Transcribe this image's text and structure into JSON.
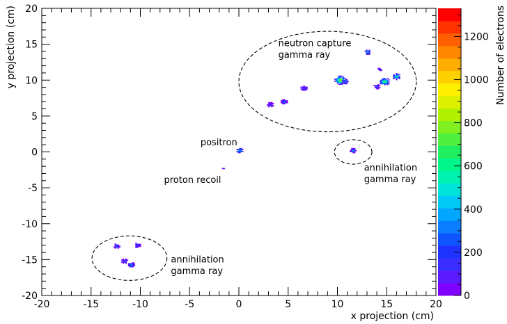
{
  "chart_data": {
    "type": "heatmap",
    "xlabel": "x projection (cm)",
    "ylabel": "y projection (cm)",
    "xlim": [
      -20,
      20
    ],
    "ylim": [
      -20,
      20
    ],
    "x_ticks": [
      -20,
      -15,
      -10,
      -5,
      0,
      5,
      10,
      15,
      20
    ],
    "y_ticks": [
      -20,
      -15,
      -10,
      -5,
      0,
      5,
      10,
      15,
      20
    ],
    "grid": false,
    "colorbar": {
      "label": "Number of electrons",
      "range": [
        0,
        1330
      ],
      "ticks": [
        0,
        200,
        400,
        600,
        800,
        1000,
        1200
      ],
      "colors": [
        "#7f00ff",
        "#5a1cff",
        "#3a2dff",
        "#1f33ff",
        "#0f55ff",
        "#0b7dff",
        "#00a6ff",
        "#00c9f5",
        "#00e3d8",
        "#00f2b0",
        "#00f58a",
        "#20f060",
        "#4ff040",
        "#80f020",
        "#b0f000",
        "#ddf000",
        "#fff000",
        "#ffd000",
        "#ffad00",
        "#ff8800",
        "#ff5f00",
        "#ff3300",
        "#ff0000"
      ]
    },
    "clusters": [
      {
        "x": 0.1,
        "y": 0.2,
        "r": 0.35,
        "peak": 420
      },
      {
        "x": -1.5,
        "y": -2.3,
        "r": 0.15,
        "peak": 120
      },
      {
        "x": 11.6,
        "y": 0.2,
        "r": 0.3,
        "peak": 380
      },
      {
        "x": 3.2,
        "y": 6.6,
        "r": 0.3,
        "peak": 160
      },
      {
        "x": 4.6,
        "y": 7.0,
        "r": 0.3,
        "peak": 300
      },
      {
        "x": 6.6,
        "y": 8.9,
        "r": 0.3,
        "peak": 260
      },
      {
        "x": 10.3,
        "y": 10.0,
        "r": 0.55,
        "peak": 900
      },
      {
        "x": 10.8,
        "y": 9.8,
        "r": 0.3,
        "peak": 380
      },
      {
        "x": 14.0,
        "y": 9.1,
        "r": 0.3,
        "peak": 200
      },
      {
        "x": 14.8,
        "y": 9.8,
        "r": 0.5,
        "peak": 700
      },
      {
        "x": 14.3,
        "y": 11.5,
        "r": 0.25,
        "peak": 180
      },
      {
        "x": 16.0,
        "y": 10.5,
        "r": 0.4,
        "peak": 600
      },
      {
        "x": 13.1,
        "y": 13.9,
        "r": 0.35,
        "peak": 380
      },
      {
        "x": -12.4,
        "y": -13.1,
        "r": 0.3,
        "peak": 260
      },
      {
        "x": -10.3,
        "y": -13.0,
        "r": 0.3,
        "peak": 220
      },
      {
        "x": -11.6,
        "y": -15.2,
        "r": 0.3,
        "peak": 220
      },
      {
        "x": -10.9,
        "y": -15.7,
        "r": 0.35,
        "peak": 320
      }
    ],
    "ellipses": [
      {
        "cx": 9.0,
        "cy": 9.8,
        "rx": 9.0,
        "ry": 7.0
      },
      {
        "cx": 11.6,
        "cy": 0.0,
        "rx": 1.9,
        "ry": 1.7
      },
      {
        "cx": -11.1,
        "cy": -14.8,
        "rx": 3.8,
        "ry": 3.1
      }
    ],
    "annotations": [
      {
        "text": "neutron capture",
        "x": 4.0,
        "y": 14.7
      },
      {
        "text": "gamma ray",
        "x": 4.0,
        "y": 13.1
      },
      {
        "text": "positron",
        "x": -3.9,
        "y": 0.9
      },
      {
        "text": "proton recoil",
        "x": -7.6,
        "y": -4.3
      },
      {
        "text": "annihilation",
        "x": 12.7,
        "y": -2.6
      },
      {
        "text": "gamma ray",
        "x": 12.7,
        "y": -4.2
      },
      {
        "text": "annihilation",
        "x": -6.9,
        "y": -15.4
      },
      {
        "text": "gamma ray",
        "x": -6.9,
        "y": -17.0
      }
    ]
  }
}
